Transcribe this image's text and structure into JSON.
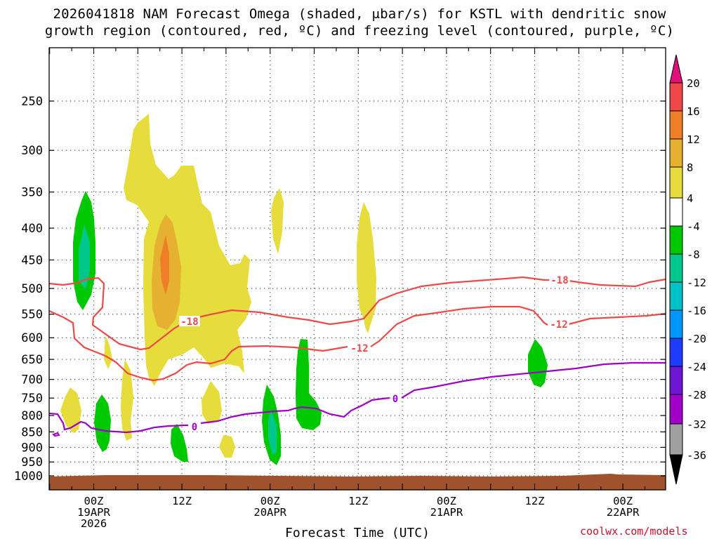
{
  "title_line1": "2026041818 NAM Forecast Omega (shaded, μbar/s) for KSTL with dendritic snow",
  "title_line2": "growth region (contoured, red, ºC) and freezing level (contoured, purple, ºC)",
  "credit": "coolwx.com/models",
  "chart_data": {
    "type": "time-height cross section",
    "xlabel": "Forecast Time (UTC)",
    "x_ticks": [
      {
        "lines": [
          "00Z",
          "19APR",
          "2026"
        ]
      },
      {
        "lines": [
          "12Z"
        ]
      },
      {
        "lines": [
          "00Z",
          "20APR"
        ]
      },
      {
        "lines": [
          "12Z"
        ]
      },
      {
        "lines": [
          "00Z",
          "21APR"
        ]
      },
      {
        "lines": [
          "12Z"
        ]
      },
      {
        "lines": [
          "00Z",
          "22APR"
        ]
      }
    ],
    "y_scale": "log pressure, decreasing upward",
    "y_ticks": [
      250,
      300,
      350,
      400,
      450,
      500,
      550,
      600,
      650,
      700,
      750,
      800,
      850,
      900,
      950,
      1000
    ],
    "ylim_hpa": [
      1000,
      200
    ],
    "grid": "dotted, at every pressure level and every 6 hours",
    "colorbar": {
      "units": "μbar/s",
      "tick_labels": [
        20,
        16,
        12,
        8,
        4,
        -4,
        -8,
        -12,
        -16,
        -20,
        -24,
        -28,
        -32,
        -36
      ],
      "bins": [
        {
          "range": "> 20",
          "color": "#e0107a",
          "shape": "triangle"
        },
        {
          "range": "16 to 20",
          "color": "#f04848"
        },
        {
          "range": "12 to 16",
          "color": "#f07e28"
        },
        {
          "range": "8 to 12",
          "color": "#e6b030"
        },
        {
          "range": "4 to 8",
          "color": "#e6dc3c"
        },
        {
          "range": "-4 to 4",
          "color": "#ffffff"
        },
        {
          "range": "-8 to -4",
          "color": "#00c800"
        },
        {
          "range": "-12 to -8",
          "color": "#00c88c"
        },
        {
          "range": "-16 to -12",
          "color": "#00c0c8"
        },
        {
          "range": "-20 to -16",
          "color": "#0096ff"
        },
        {
          "range": "-24 to -20",
          "color": "#1e3cff"
        },
        {
          "range": "-28 to -24",
          "color": "#6e14d2"
        },
        {
          "range": "-32 to -28",
          "color": "#a000c8"
        },
        {
          "range": "-36 to -32",
          "color": "#a0a0a0"
        },
        {
          "range": "< -36",
          "color": "#000000",
          "shape": "triangle"
        }
      ]
    },
    "contours": [
      {
        "label": "-18",
        "color": "#f04848",
        "level_c": -18
      },
      {
        "label": "-12",
        "color": "#f04848",
        "level_c": -12
      },
      {
        "label": "0",
        "color": "#a000c8",
        "level_c": 0
      }
    ],
    "terrain_color": "#a0522d"
  }
}
